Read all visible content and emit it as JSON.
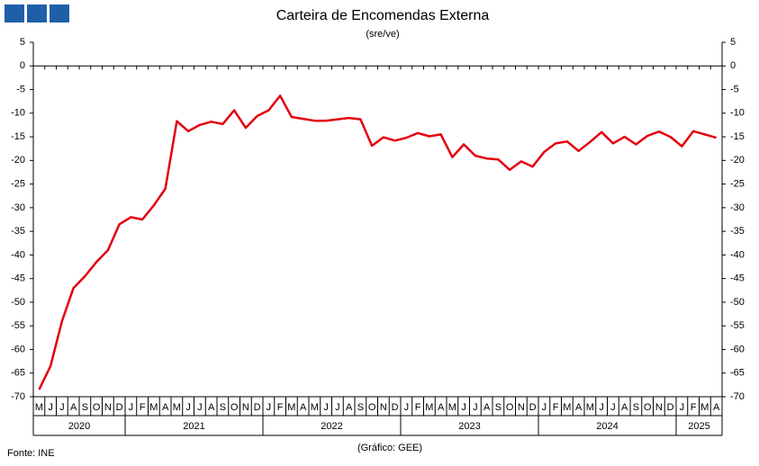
{
  "chart_data": {
    "type": "line",
    "title": "Carteira de Encomendas Externa",
    "subtitle": "(sre/ve)",
    "source": "Fonte: INE",
    "credit": "(Gráfico: GEE)",
    "categories": [
      "M",
      "J",
      "J",
      "A",
      "S",
      "O",
      "N",
      "D",
      "J",
      "F",
      "M",
      "A",
      "M",
      "J",
      "J",
      "A",
      "S",
      "O",
      "N",
      "D",
      "J",
      "F",
      "M",
      "A",
      "M",
      "J",
      "J",
      "A",
      "S",
      "O",
      "N",
      "D",
      "J",
      "F",
      "M",
      "A",
      "M",
      "J",
      "J",
      "A",
      "S",
      "O",
      "N",
      "D",
      "J",
      "F",
      "M",
      "A",
      "M",
      "J",
      "J",
      "A",
      "S",
      "O",
      "N",
      "D",
      "J",
      "F",
      "M",
      "A"
    ],
    "year_groups": [
      {
        "label": "2020",
        "months": 8
      },
      {
        "label": "2021",
        "months": 12
      },
      {
        "label": "2022",
        "months": 12
      },
      {
        "label": "2023",
        "months": 12
      },
      {
        "label": "2024",
        "months": 12
      },
      {
        "label": "2025",
        "months": 4
      }
    ],
    "series": [
      {
        "color": "#e3000f",
        "values": [
          -68.5,
          -63.5,
          -54,
          -47,
          -44.5,
          -41.5,
          -39,
          -33.5,
          -32,
          -32.5,
          -29.5,
          -26,
          -11.7,
          -13.8,
          -12.5,
          -11.8,
          -12.3,
          -9.4,
          -13.1,
          -10.6,
          -9.4,
          -6.3,
          -10.8,
          -11.2,
          -11.6,
          -11.6,
          -11.3,
          -11.0,
          -11.3,
          -16.9,
          -15.1,
          -15.8,
          -15.2,
          -14.2,
          -14.9,
          -14.5,
          -19.3,
          -16.6,
          -19.0,
          -19.6,
          -19.8,
          -22.0,
          -20.2,
          -21.3,
          -18.2,
          -16.4,
          -16.0,
          -18.0,
          -16.1,
          -14.0,
          -16.4,
          -15.0,
          -16.6,
          -14.8,
          -13.9,
          -15.0,
          -17.0,
          -13.8,
          -14.5,
          -15.2
        ]
      }
    ],
    "ylim": [
      -70,
      5
    ],
    "yticks": [
      5,
      0,
      -5,
      -10,
      -15,
      -20,
      -25,
      -30,
      -35,
      -40,
      -45,
      -50,
      -55,
      -60,
      -65,
      -70
    ],
    "y2lim": [
      -70,
      5
    ],
    "y2ticks": [
      5,
      0,
      -5,
      -10,
      -15,
      -20,
      -25,
      -30,
      -35,
      -40,
      -45,
      -50,
      -55,
      -60,
      -65,
      -70
    ]
  }
}
